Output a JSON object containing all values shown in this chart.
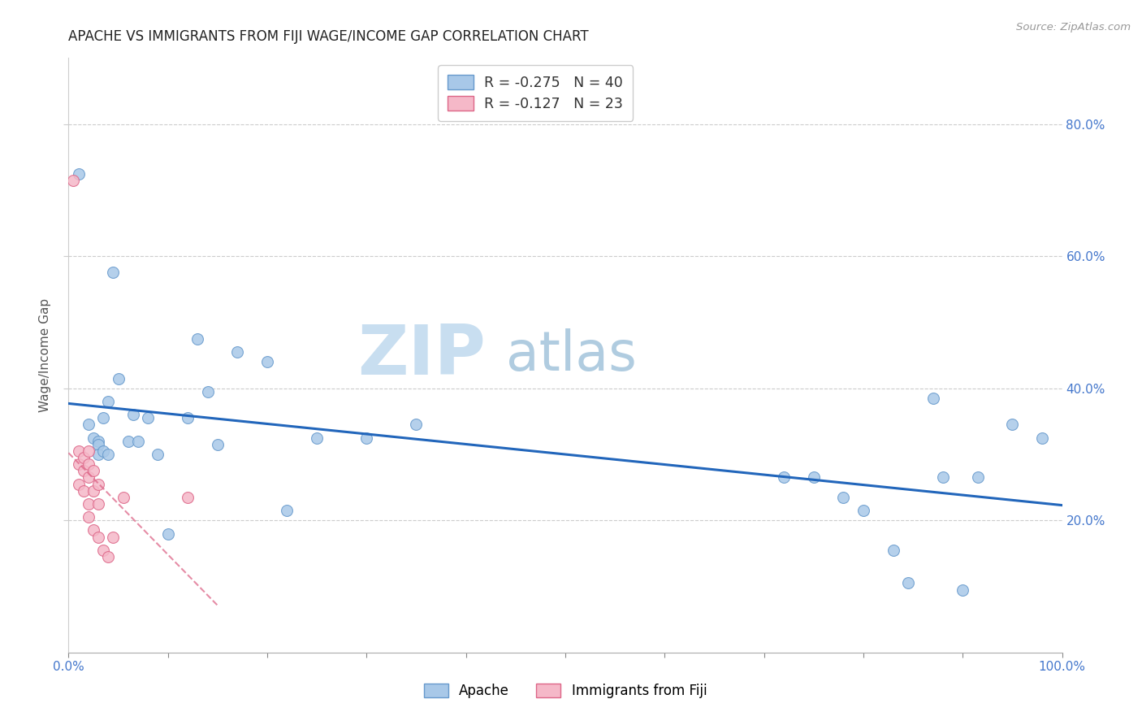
{
  "title": "APACHE VS IMMIGRANTS FROM FIJI WAGE/INCOME GAP CORRELATION CHART",
  "source": "Source: ZipAtlas.com",
  "ylabel": "Wage/Income Gap",
  "xlim": [
    0.0,
    1.0
  ],
  "ylim": [
    0.0,
    0.9
  ],
  "xticks": [
    0.0,
    0.1,
    0.2,
    0.3,
    0.4,
    0.5,
    0.6,
    0.7,
    0.8,
    0.9,
    1.0
  ],
  "xticklabels_show": {
    "0.0": "0.0%",
    "1.0": "100.0%"
  },
  "yticks_right": [
    0.2,
    0.4,
    0.6,
    0.8
  ],
  "yticklabels_right": [
    "20.0%",
    "40.0%",
    "60.0%",
    "80.0%"
  ],
  "apache_color": "#a8c8e8",
  "apache_edge_color": "#6699cc",
  "fiji_color": "#f5b8c8",
  "fiji_edge_color": "#dd6688",
  "trendline_apache_color": "#2266bb",
  "trendline_fiji_color": "#dd6688",
  "legend_label_apache": "Apache",
  "legend_label_fiji": "Immigrants from Fiji",
  "r_apache": -0.275,
  "n_apache": 40,
  "r_fiji": -0.127,
  "n_fiji": 23,
  "background_color": "#ffffff",
  "grid_color": "#cccccc",
  "watermark_zip": "ZIP",
  "watermark_atlas": "atlas",
  "watermark_color_zip": "#c8def0",
  "watermark_color_atlas": "#b0cce0",
  "apache_x": [
    0.01,
    0.02,
    0.025,
    0.03,
    0.03,
    0.03,
    0.035,
    0.035,
    0.04,
    0.04,
    0.045,
    0.05,
    0.06,
    0.065,
    0.07,
    0.08,
    0.09,
    0.1,
    0.12,
    0.13,
    0.14,
    0.15,
    0.17,
    0.2,
    0.22,
    0.25,
    0.3,
    0.35,
    0.72,
    0.75,
    0.78,
    0.8,
    0.83,
    0.845,
    0.87,
    0.88,
    0.9,
    0.915,
    0.95,
    0.98
  ],
  "apache_y": [
    0.725,
    0.345,
    0.325,
    0.32,
    0.315,
    0.3,
    0.355,
    0.305,
    0.38,
    0.3,
    0.575,
    0.415,
    0.32,
    0.36,
    0.32,
    0.355,
    0.3,
    0.18,
    0.355,
    0.475,
    0.395,
    0.315,
    0.455,
    0.44,
    0.215,
    0.325,
    0.325,
    0.345,
    0.265,
    0.265,
    0.235,
    0.215,
    0.155,
    0.105,
    0.385,
    0.265,
    0.095,
    0.265,
    0.345,
    0.325
  ],
  "fiji_x": [
    0.005,
    0.01,
    0.01,
    0.01,
    0.015,
    0.015,
    0.015,
    0.02,
    0.02,
    0.02,
    0.02,
    0.02,
    0.025,
    0.025,
    0.025,
    0.03,
    0.03,
    0.03,
    0.035,
    0.04,
    0.045,
    0.055,
    0.12
  ],
  "fiji_y": [
    0.715,
    0.305,
    0.285,
    0.255,
    0.295,
    0.275,
    0.245,
    0.305,
    0.285,
    0.265,
    0.225,
    0.205,
    0.275,
    0.245,
    0.185,
    0.255,
    0.225,
    0.175,
    0.155,
    0.145,
    0.175,
    0.235,
    0.235
  ]
}
